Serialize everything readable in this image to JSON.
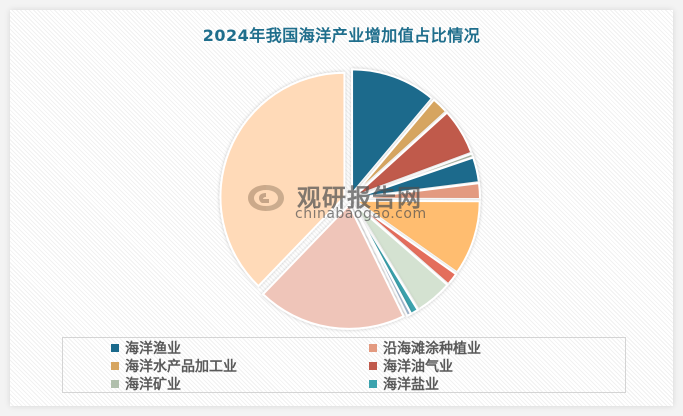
{
  "chart_data": {
    "type": "pie",
    "title": "2024年我国海洋产业增加值占比情况",
    "exploded": true,
    "start_angle_deg": 0,
    "direction": "clockwise",
    "legend_position": "bottom",
    "slices": [
      {
        "label": "海洋渔业",
        "value": 10.3,
        "color": "#1b6a8c"
      },
      {
        "label": "海洋水产品加工业",
        "value": 2.0,
        "color": "#d6a560"
      },
      {
        "label": "海洋油气业",
        "value": 5.6,
        "color": "#c05a4c"
      },
      {
        "label": "",
        "value": 0.4,
        "color": "#a9b8a2"
      },
      {
        "label": "",
        "value": 3.0,
        "color": "#1b6a8c"
      },
      {
        "label": "沿海滩涂种植业",
        "value": 1.9,
        "color": "#e39a80"
      },
      {
        "label": "",
        "value": 9.0,
        "color": "#ffbd70"
      },
      {
        "label": "",
        "value": 1.5,
        "color": "#e46e5c"
      },
      {
        "label": "海洋矿业",
        "value": 4.5,
        "color": "#d4e2d1"
      },
      {
        "label": "海洋盐业",
        "value": 0.9,
        "color": "#3aa2ad"
      },
      {
        "label": "",
        "value": 0.5,
        "color": "#9fb3c8"
      },
      {
        "label": "",
        "value": 18.0,
        "color": "#efc5b9"
      },
      {
        "label": "",
        "value": 35.0,
        "color": "#ffdab8"
      }
    ],
    "legend": [
      {
        "label": "海洋渔业",
        "color": "#1b6a8c"
      },
      {
        "label": "沿海滩涂种植业",
        "color": "#e39a80"
      },
      {
        "label": "海洋水产品加工业",
        "color": "#d6a560"
      },
      {
        "label": "海洋油气业",
        "color": "#c05a4c"
      },
      {
        "label": "海洋矿业",
        "color": "#b0bfac"
      },
      {
        "label": "海洋盐业",
        "color": "#3aa2ad"
      }
    ]
  },
  "watermark": {
    "cn": "观研报告网",
    "en": "chinabaogao.com"
  }
}
